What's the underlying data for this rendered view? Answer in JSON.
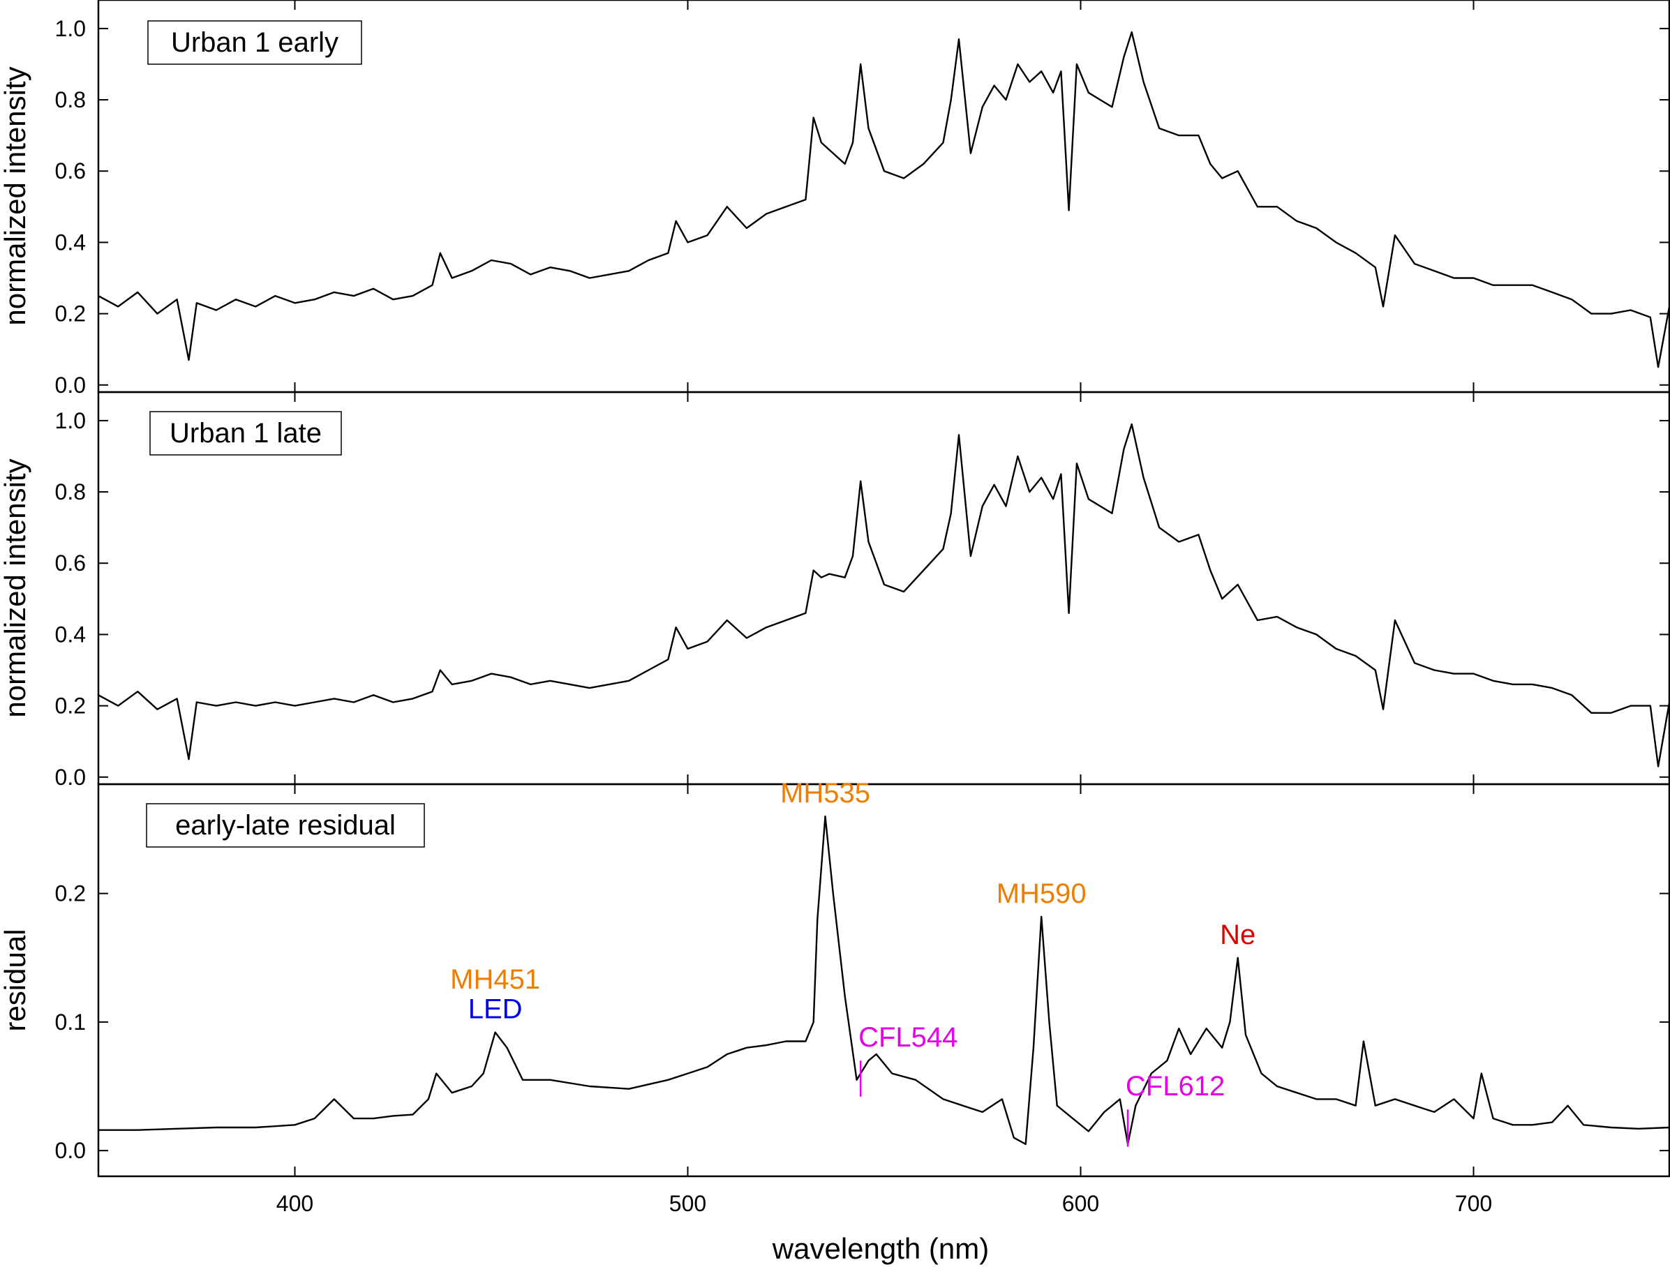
{
  "figure": {
    "xlabel": "wavelength (nm)",
    "xlim": [
      350,
      750
    ],
    "xticks": [
      400,
      500,
      600,
      700
    ],
    "colors": {
      "line": "#000000",
      "metal_halide": "#f07d00",
      "led": "#0000ee",
      "cfl": "#e600e6",
      "neon": "#dd0000"
    }
  },
  "chart_data": [
    {
      "type": "line",
      "panel_label": "Urban 1 early",
      "ylabel": "normalized intensity",
      "ylim": [
        -0.02,
        1.08
      ],
      "yticks": [
        "0.0",
        "0.2",
        "0.4",
        "0.6",
        "0.8",
        "1.0"
      ],
      "x": [
        350,
        355,
        360,
        365,
        370,
        373,
        375,
        380,
        385,
        390,
        395,
        400,
        405,
        410,
        415,
        420,
        425,
        430,
        435,
        437,
        440,
        445,
        450,
        455,
        460,
        465,
        470,
        475,
        480,
        485,
        490,
        495,
        497,
        500,
        505,
        510,
        515,
        520,
        525,
        530,
        532,
        534,
        536,
        540,
        542,
        544,
        546,
        550,
        555,
        560,
        565,
        567,
        569,
        572,
        575,
        578,
        581,
        584,
        587,
        590,
        593,
        595,
        597,
        599,
        602,
        605,
        608,
        611,
        613,
        616,
        620,
        625,
        630,
        633,
        636,
        640,
        645,
        650,
        655,
        660,
        665,
        670,
        675,
        677,
        680,
        685,
        690,
        695,
        700,
        705,
        710,
        715,
        720,
        725,
        730,
        735,
        740,
        745,
        747,
        750
      ],
      "series": [
        {
          "values": [
            0.25,
            0.22,
            0.26,
            0.2,
            0.24,
            0.07,
            0.23,
            0.21,
            0.24,
            0.22,
            0.25,
            0.23,
            0.24,
            0.26,
            0.25,
            0.27,
            0.24,
            0.25,
            0.28,
            0.37,
            0.3,
            0.32,
            0.35,
            0.34,
            0.31,
            0.33,
            0.32,
            0.3,
            0.31,
            0.32,
            0.35,
            0.37,
            0.46,
            0.4,
            0.42,
            0.5,
            0.44,
            0.48,
            0.5,
            0.52,
            0.75,
            0.68,
            0.66,
            0.62,
            0.68,
            0.9,
            0.72,
            0.6,
            0.58,
            0.62,
            0.68,
            0.8,
            0.97,
            0.65,
            0.78,
            0.84,
            0.8,
            0.9,
            0.85,
            0.88,
            0.82,
            0.88,
            0.49,
            0.9,
            0.82,
            0.8,
            0.78,
            0.92,
            0.99,
            0.85,
            0.72,
            0.7,
            0.7,
            0.62,
            0.58,
            0.6,
            0.5,
            0.5,
            0.46,
            0.44,
            0.4,
            0.37,
            0.33,
            0.22,
            0.42,
            0.34,
            0.32,
            0.3,
            0.3,
            0.28,
            0.28,
            0.28,
            0.26,
            0.24,
            0.2,
            0.2,
            0.21,
            0.19,
            0.05,
            0.23
          ]
        }
      ]
    },
    {
      "type": "line",
      "panel_label": "Urban 1 late",
      "ylabel": "normalized intensity",
      "ylim": [
        -0.02,
        1.08
      ],
      "yticks": [
        "0.0",
        "0.2",
        "0.4",
        "0.6",
        "0.8",
        "1.0"
      ],
      "x": [
        350,
        355,
        360,
        365,
        370,
        373,
        375,
        380,
        385,
        390,
        395,
        400,
        405,
        410,
        415,
        420,
        425,
        430,
        435,
        437,
        440,
        445,
        450,
        455,
        460,
        465,
        470,
        475,
        480,
        485,
        490,
        495,
        497,
        500,
        505,
        510,
        515,
        520,
        525,
        530,
        532,
        534,
        536,
        540,
        542,
        544,
        546,
        550,
        555,
        560,
        565,
        567,
        569,
        572,
        575,
        578,
        581,
        584,
        587,
        590,
        593,
        595,
        597,
        599,
        602,
        605,
        608,
        611,
        613,
        616,
        620,
        625,
        630,
        633,
        636,
        640,
        645,
        650,
        655,
        660,
        665,
        670,
        675,
        677,
        680,
        685,
        690,
        695,
        700,
        705,
        710,
        715,
        720,
        725,
        730,
        735,
        740,
        745,
        747,
        750
      ],
      "series": [
        {
          "values": [
            0.23,
            0.2,
            0.24,
            0.19,
            0.22,
            0.05,
            0.21,
            0.2,
            0.21,
            0.2,
            0.21,
            0.2,
            0.21,
            0.22,
            0.21,
            0.23,
            0.21,
            0.22,
            0.24,
            0.3,
            0.26,
            0.27,
            0.29,
            0.28,
            0.26,
            0.27,
            0.26,
            0.25,
            0.26,
            0.27,
            0.3,
            0.33,
            0.42,
            0.36,
            0.38,
            0.44,
            0.39,
            0.42,
            0.44,
            0.46,
            0.58,
            0.56,
            0.57,
            0.56,
            0.62,
            0.83,
            0.66,
            0.54,
            0.52,
            0.58,
            0.64,
            0.74,
            0.96,
            0.62,
            0.76,
            0.82,
            0.76,
            0.9,
            0.8,
            0.84,
            0.78,
            0.85,
            0.46,
            0.88,
            0.78,
            0.76,
            0.74,
            0.92,
            0.99,
            0.84,
            0.7,
            0.66,
            0.68,
            0.58,
            0.5,
            0.54,
            0.44,
            0.45,
            0.42,
            0.4,
            0.36,
            0.34,
            0.3,
            0.19,
            0.44,
            0.32,
            0.3,
            0.29,
            0.29,
            0.27,
            0.26,
            0.26,
            0.25,
            0.23,
            0.18,
            0.18,
            0.2,
            0.2,
            0.03,
            0.22
          ]
        }
      ]
    },
    {
      "type": "line",
      "panel_label": "early-late residual",
      "ylabel": "residual",
      "ylim": [
        -0.02,
        0.285
      ],
      "yticks": [
        "0.0",
        "0.1",
        "0.2"
      ],
      "x": [
        350,
        360,
        370,
        380,
        390,
        400,
        405,
        410,
        415,
        420,
        425,
        430,
        434,
        436,
        440,
        445,
        448,
        451,
        454,
        458,
        465,
        475,
        485,
        495,
        500,
        505,
        510,
        515,
        520,
        525,
        530,
        532,
        533,
        535,
        537,
        540,
        543,
        546,
        548,
        552,
        558,
        565,
        570,
        575,
        580,
        583,
        586,
        588,
        590,
        592,
        594,
        598,
        602,
        606,
        610,
        612,
        614,
        618,
        622,
        625,
        628,
        632,
        636,
        638,
        640,
        642,
        646,
        650,
        655,
        660,
        665,
        670,
        672,
        675,
        680,
        685,
        690,
        695,
        700,
        702,
        705,
        710,
        715,
        720,
        724,
        728,
        735,
        742,
        750
      ],
      "series": [
        {
          "values": [
            0.016,
            0.016,
            0.017,
            0.018,
            0.018,
            0.02,
            0.025,
            0.04,
            0.025,
            0.025,
            0.027,
            0.028,
            0.04,
            0.06,
            0.045,
            0.05,
            0.06,
            0.092,
            0.08,
            0.055,
            0.055,
            0.05,
            0.048,
            0.055,
            0.06,
            0.065,
            0.075,
            0.08,
            0.082,
            0.085,
            0.085,
            0.1,
            0.18,
            0.26,
            0.2,
            0.12,
            0.055,
            0.07,
            0.075,
            0.06,
            0.055,
            0.04,
            0.035,
            0.03,
            0.04,
            0.01,
            0.005,
            0.08,
            0.182,
            0.1,
            0.035,
            0.025,
            0.015,
            0.03,
            0.04,
            0.005,
            0.035,
            0.06,
            0.07,
            0.095,
            0.075,
            0.095,
            0.08,
            0.1,
            0.15,
            0.09,
            0.06,
            0.05,
            0.045,
            0.04,
            0.04,
            0.035,
            0.085,
            0.035,
            0.04,
            0.035,
            0.03,
            0.04,
            0.025,
            0.06,
            0.025,
            0.02,
            0.02,
            0.022,
            0.035,
            0.02,
            0.018,
            0.017,
            0.018
          ]
        }
      ],
      "annotations": [
        {
          "text": "MH535",
          "color": "metal_halide",
          "x": 535,
          "y": 0.26
        },
        {
          "text": "MH590",
          "color": "metal_halide",
          "x": 590,
          "y": 0.182
        },
        {
          "text": "MH451",
          "color": "metal_halide",
          "x": 451,
          "y": 0.115
        },
        {
          "text": "LED",
          "color": "led",
          "x": 451,
          "y": 0.092
        },
        {
          "text": "Ne",
          "color": "neon",
          "x": 640,
          "y": 0.15
        },
        {
          "text": "CFL544",
          "color": "cfl",
          "x": 544,
          "marker": [
            0.042,
            0.07
          ]
        },
        {
          "text": "CFL612",
          "color": "cfl",
          "x": 612,
          "marker": [
            0.003,
            0.032
          ]
        }
      ]
    }
  ]
}
